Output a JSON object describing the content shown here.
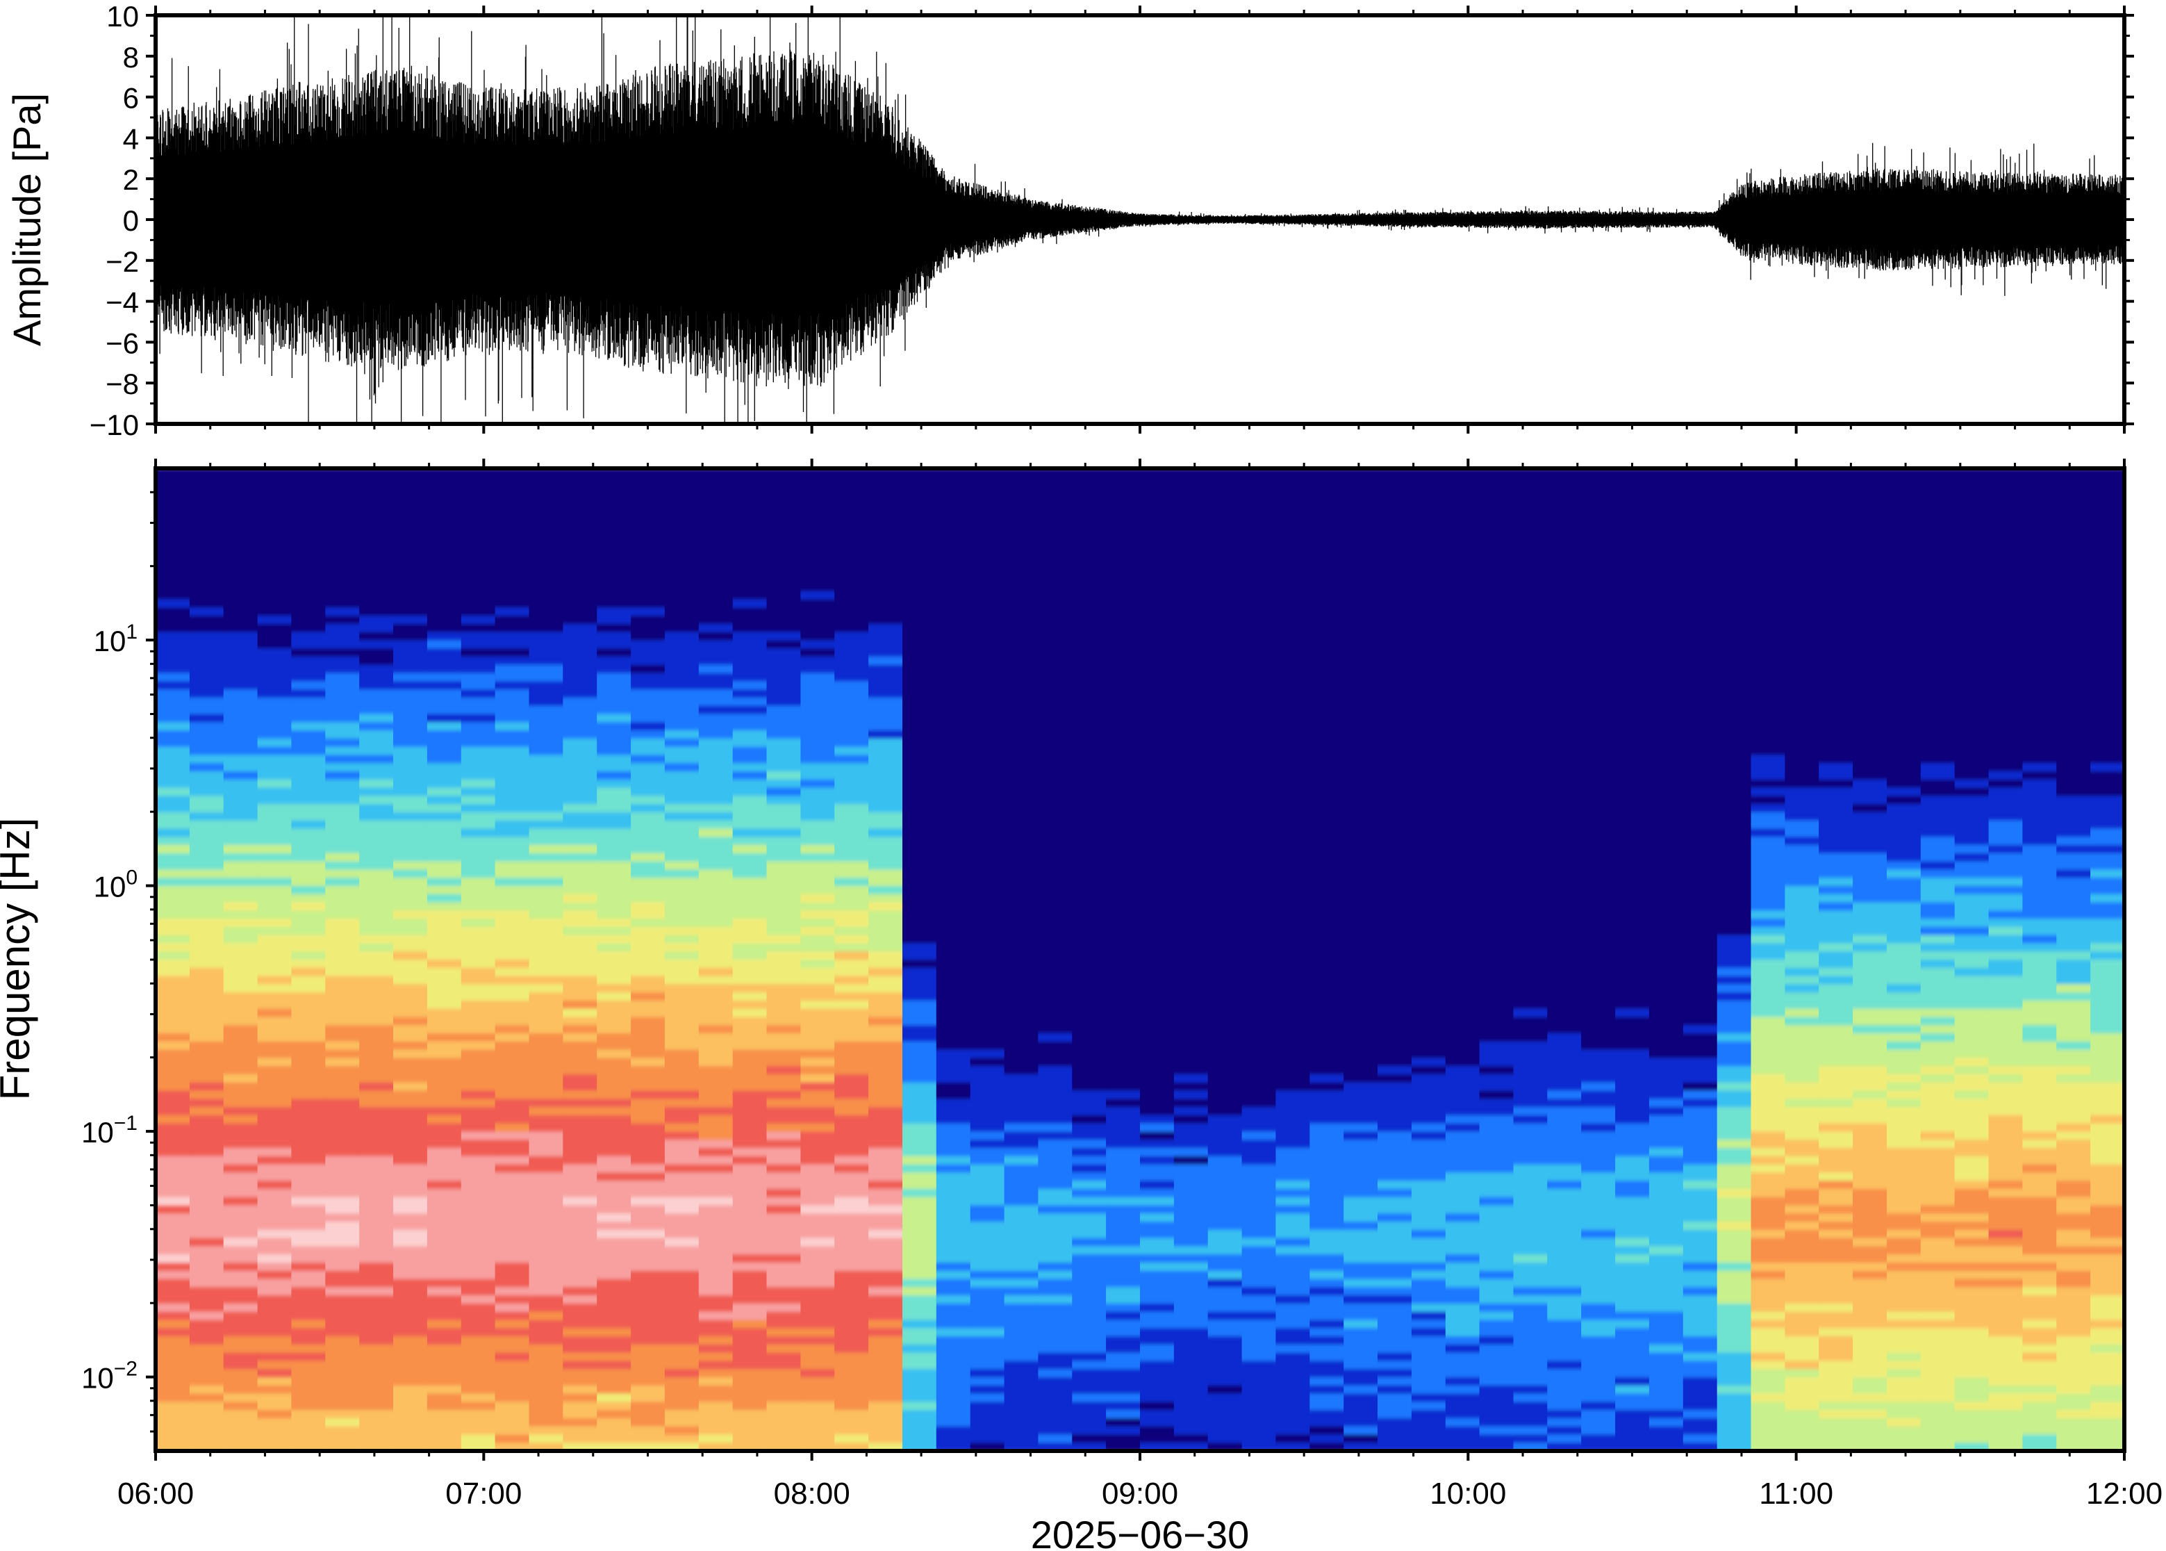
{
  "chart_data": [
    {
      "type": "line",
      "panel": "waveform",
      "ylabel": "Amplitude [Pa]",
      "ylim": [
        -10,
        10
      ],
      "yticks": [
        -10,
        -8,
        -6,
        -4,
        -2,
        0,
        2,
        4,
        6,
        8,
        10
      ],
      "ytick_labels": [
        "−10",
        "−8",
        "−6",
        "−4",
        "−2",
        "0",
        "2",
        "4",
        "6",
        "8",
        "10"
      ],
      "x_start": "06:00",
      "x_end": "12:00",
      "series_color": "#000000",
      "envelope": {
        "time": [
          "06:00",
          "06:15",
          "06:30",
          "06:45",
          "07:00",
          "07:15",
          "07:30",
          "07:45",
          "08:00",
          "08:15",
          "08:25",
          "08:40",
          "09:00",
          "09:15",
          "09:30",
          "09:45",
          "10:00",
          "10:15",
          "10:30",
          "10:45",
          "10:50",
          "11:00",
          "11:15",
          "11:30",
          "11:45",
          "12:00"
        ],
        "amplitude_pa": [
          5.5,
          6,
          7,
          7.5,
          6.5,
          6.5,
          7.5,
          8,
          8.5,
          5.5,
          2.2,
          1.0,
          0.3,
          0.2,
          0.25,
          0.35,
          0.4,
          0.45,
          0.4,
          0.4,
          1.8,
          2.2,
          2.5,
          2.4,
          2.3,
          2.2
        ]
      }
    },
    {
      "type": "heatmap",
      "panel": "spectrogram",
      "ylabel": "Frequency [Hz]",
      "yscale": "log",
      "ylim": [
        0.005,
        50
      ],
      "yticks": [
        0.01,
        0.1,
        1,
        10
      ],
      "ytick_labels": [
        {
          "base": "10",
          "exp": "−2"
        },
        {
          "base": "10",
          "exp": "−1"
        },
        {
          "base": "10",
          "exp": "0"
        },
        {
          "base": "10",
          "exp": "1"
        }
      ],
      "colormap": [
        "#08007a",
        "#0a2ad0",
        "#1a78ff",
        "#38c0f0",
        "#70e2d0",
        "#c8f08c",
        "#f0ec78",
        "#fcc060",
        "#f89048",
        "#f05c52",
        "#f8a0a0",
        "#fcd0d0"
      ],
      "shared_x_axis": {
        "ticks": [
          "06:00",
          "07:00",
          "08:00",
          "09:00",
          "10:00",
          "11:00",
          "12:00"
        ],
        "xlabel": "2025−06−30"
      },
      "activity_phases": [
        {
          "from": "06:00",
          "to": "08:17",
          "level": "high"
        },
        {
          "from": "08:17",
          "to": "10:50",
          "level": "low"
        },
        {
          "from": "10:50",
          "to": "12:00",
          "level": "medium"
        }
      ]
    }
  ]
}
